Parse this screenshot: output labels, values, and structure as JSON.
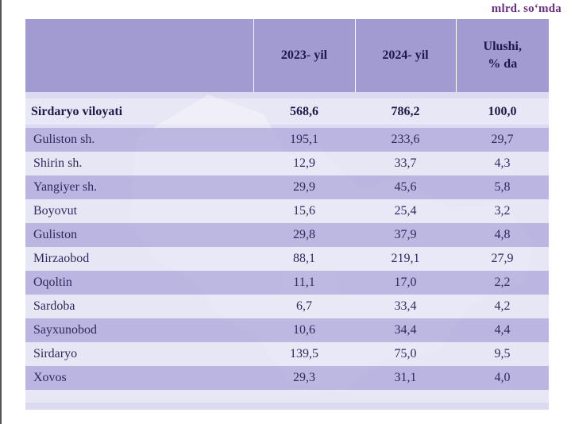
{
  "unit_note": "mlrd. so‘mda",
  "header": {
    "col_name": "",
    "col_2023": "2023- yil",
    "col_2024": "2024- yil",
    "col_share_line1": "Ulushi,",
    "col_share_line2": "% da"
  },
  "total": {
    "name": "Sirdaryo viloyati",
    "y2023": "568,6",
    "y2024": "786,2",
    "share": "100,0"
  },
  "rows": [
    {
      "name": "Guliston sh.",
      "y2023": "195,1",
      "y2024": "233,6",
      "share": "29,7"
    },
    {
      "name": "Shirin sh.",
      "y2023": "12,9",
      "y2024": "33,7",
      "share": "4,3"
    },
    {
      "name": "Yangiyer sh.",
      "y2023": "29,9",
      "y2024": "45,6",
      "share": "5,8"
    },
    {
      "name": "Boyovut",
      "y2023": "15,6",
      "y2024": "25,4",
      "share": "3,2"
    },
    {
      "name": "Guliston",
      "y2023": "29,8",
      "y2024": "37,9",
      "share": "4,8"
    },
    {
      "name": "Mirzaobod",
      "y2023": "88,1",
      "y2024": "219,1",
      "share": "27,9"
    },
    {
      "name": "Oqoltin",
      "y2023": "11,1",
      "y2024": "17,0",
      "share": "2,2"
    },
    {
      "name": "Sardoba",
      "y2023": "6,7",
      "y2024": "33,4",
      "share": "4,2"
    },
    {
      "name": "Sayxunobod",
      "y2023": "10,6",
      "y2024": "34,4",
      "share": "4,4"
    },
    {
      "name": "Sirdaryo",
      "y2023": "139,5",
      "y2024": "75,0",
      "share": "9,5"
    },
    {
      "name": "Xovos",
      "y2023": "29,3",
      "y2024": "31,1",
      "share": "4,0"
    }
  ],
  "colors": {
    "header_bg": "#a19bd1",
    "unit_note": "#6b2f86",
    "row_dark": "#b4afde",
    "row_light": "#e8e8f6"
  }
}
